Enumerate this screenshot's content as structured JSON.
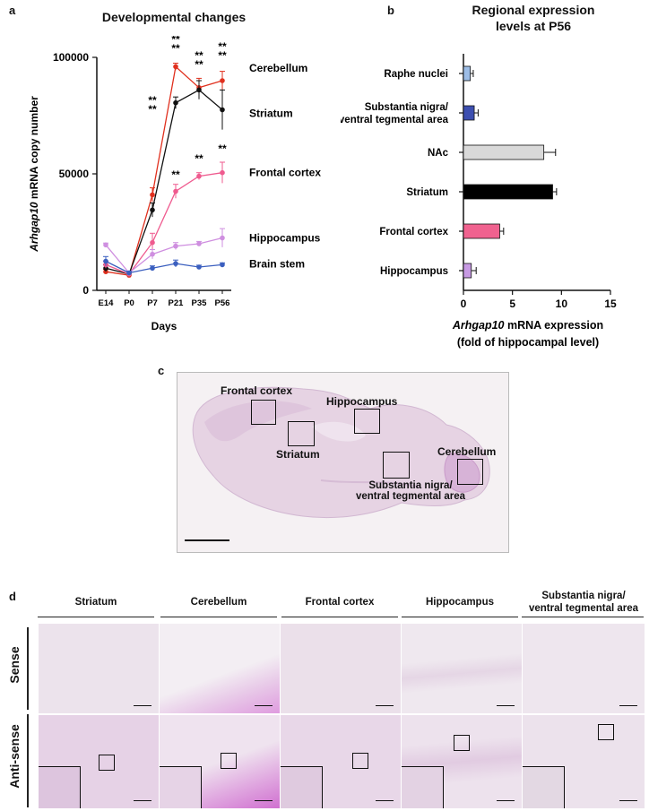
{
  "panel_a": {
    "letter": "a",
    "title": "Developmental changes",
    "ylabel_italic": "Arhgap10",
    "ylabel_rest": " mRNA copy number",
    "xlabel": "Days",
    "annotations": [
      "**",
      "**",
      "**",
      "**",
      "**",
      "**",
      "**",
      "**",
      "**",
      "**",
      "**",
      "**"
    ]
  },
  "panel_b": {
    "letter": "b",
    "title_line1": "Regional expression",
    "title_line2": "levels at P56",
    "xlabel_italic": "Arhgap10",
    "xlabel_rest": " mRNA expression",
    "xlabel_line2": "(fold of hippocampal level)"
  },
  "panel_c": {
    "letter": "c",
    "labels": [
      "Frontal cortex",
      "Hippocampus",
      "Striatum",
      "Cerebellum",
      "Substantia nigra/",
      "ventral tegmental area"
    ]
  },
  "panel_d": {
    "letter": "d",
    "columns": [
      "Striatum",
      "Cerebellum",
      "Frontal cortex",
      "Hippocampus",
      "Substantia nigra/",
      "ventral tegmental area"
    ],
    "rows": [
      "Sense",
      "Anti-sense"
    ]
  },
  "chart_data": [
    {
      "type": "line",
      "title": "Developmental changes",
      "xlabel": "Days",
      "ylabel": "Arhgap10 mRNA copy number",
      "categories": [
        "E14",
        "P0",
        "P7",
        "P21",
        "P35",
        "P56"
      ],
      "ylim": [
        0,
        100000
      ],
      "yticks": [
        0,
        50000,
        100000
      ],
      "series": [
        {
          "name": "Cerebellum",
          "color": "#e0301e",
          "values": [
            8000,
            6500,
            41000,
            96000,
            87000,
            90000
          ],
          "err": [
            1000,
            800,
            3000,
            1500,
            4000,
            4000
          ]
        },
        {
          "name": "Striatum",
          "color": "#111111",
          "values": [
            9500,
            7000,
            34500,
            80500,
            86000,
            77500
          ],
          "err": [
            1500,
            800,
            3000,
            2500,
            4000,
            8500
          ]
        },
        {
          "name": "Frontal cortex",
          "color": "#ef5b8f",
          "values": [
            11000,
            7000,
            20500,
            42500,
            49000,
            50500
          ],
          "err": [
            1500,
            800,
            4000,
            3000,
            1500,
            4500
          ]
        },
        {
          "name": "Hippocampus",
          "color": "#cf8fe0",
          "values": [
            19500,
            7500,
            15500,
            19000,
            20000,
            22500
          ],
          "err": [
            800,
            700,
            2000,
            1500,
            1000,
            4000
          ]
        },
        {
          "name": "Brain stem",
          "color": "#3b5fbf",
          "values": [
            12500,
            7500,
            9500,
            11500,
            10000,
            11000
          ],
          "err": [
            2000,
            700,
            1000,
            1500,
            800,
            800
          ]
        }
      ]
    },
    {
      "type": "bar",
      "orientation": "horizontal",
      "title": "Regional expression levels at P56",
      "xlabel": "Arhgap10 mRNA expression (fold of hippocampal level)",
      "categories": [
        "Raphe nuclei",
        "Substantia nigra/ ventral tegmental area",
        "NAc",
        "Striatum",
        "Frontal cortex",
        "Hippocampus"
      ],
      "category_lines": [
        [
          "Raphe nuclei"
        ],
        [
          "Substantia nigra/",
          "ventral tegmental area"
        ],
        [
          "NAc"
        ],
        [
          "Striatum"
        ],
        [
          "Frontal cortex"
        ],
        [
          "Hippocampus"
        ]
      ],
      "values": [
        0.7,
        1.1,
        8.2,
        9.1,
        3.7,
        0.8
      ],
      "err": [
        0.3,
        0.4,
        1.2,
        0.4,
        0.4,
        0.5
      ],
      "colors": [
        "#9dbde6",
        "#3d4fb0",
        "#d9d9d9",
        "#000000",
        "#f0628f",
        "#c79ae3"
      ],
      "xlim": [
        0,
        15
      ],
      "xticks": [
        0,
        5,
        10,
        15
      ]
    }
  ]
}
